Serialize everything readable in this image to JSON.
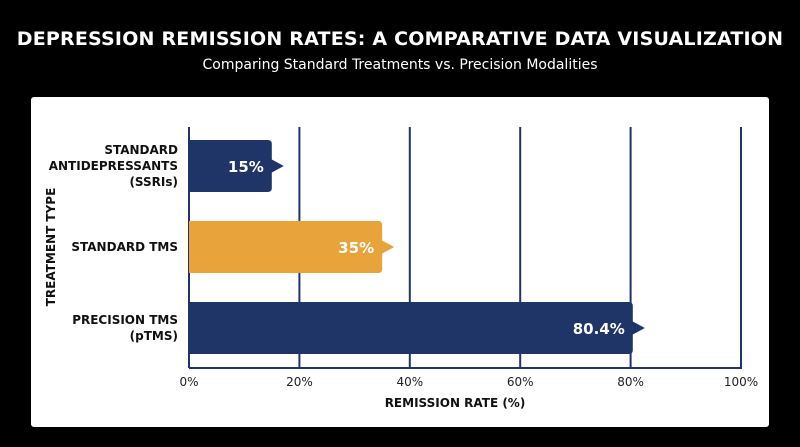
{
  "title": "DEPRESSION REMISSION RATES: A COMPARATIVE DATA VISUALIZATION",
  "subtitle": "Comparing Standard Treatments vs. Precision Modalities",
  "chart_data": {
    "type": "bar",
    "orientation": "horizontal",
    "categories": [
      [
        "STANDARD",
        "ANTIDEPRESSANTS",
        "(SSRIs)"
      ],
      [
        "STANDARD TMS"
      ],
      [
        "PRECISION TMS",
        "(pTMS)"
      ]
    ],
    "values": [
      15,
      35,
      80.4
    ],
    "value_labels": [
      "15%",
      "35%",
      "80.4%"
    ],
    "bar_colors": [
      "#1f3467",
      "#e8a33a",
      "#1f3467"
    ],
    "xlabel": "REMISSION RATE (%)",
    "ylabel": "TREATMENT TYPE",
    "xlim": [
      0,
      100
    ],
    "xticks": [
      0,
      20,
      40,
      60,
      80,
      100
    ],
    "xtick_labels": [
      "0%",
      "20%",
      "40%",
      "60%",
      "80%",
      "100%"
    ],
    "grid": "vertical"
  }
}
